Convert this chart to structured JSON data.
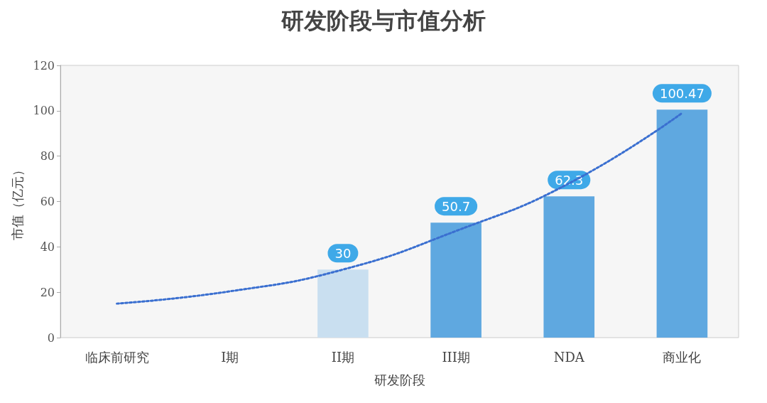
{
  "chart_data": {
    "type": "bar",
    "title": "研发阶段与市值分析",
    "xlabel": "研发阶段",
    "ylabel": "市值（亿元）",
    "categories": [
      "临床前研究",
      "I期",
      "II期",
      "III期",
      "NDA",
      "商业化"
    ],
    "ylim": [
      0,
      120
    ],
    "yticks": [
      0,
      20,
      40,
      60,
      80,
      100,
      120
    ],
    "grid": false,
    "series": [
      {
        "colors": [
          "#5fa8e0",
          "#5fa8e0",
          "#c9dff0",
          "#5fa8e0",
          "#5fa8e0",
          "#5fa8e0"
        ],
        "values": [
          null,
          null,
          30,
          50.7,
          62.3,
          100.47
        ],
        "value_labels": [
          null,
          null,
          "30",
          "50.7",
          "62.3",
          "100.47"
        ]
      },
      {
        "type": "line",
        "color": "#3a6fd0",
        "line_style": "dotted",
        "marker": "none",
        "values": [
          15,
          20.4,
          30,
          47,
          68,
          99
        ]
      }
    ]
  }
}
